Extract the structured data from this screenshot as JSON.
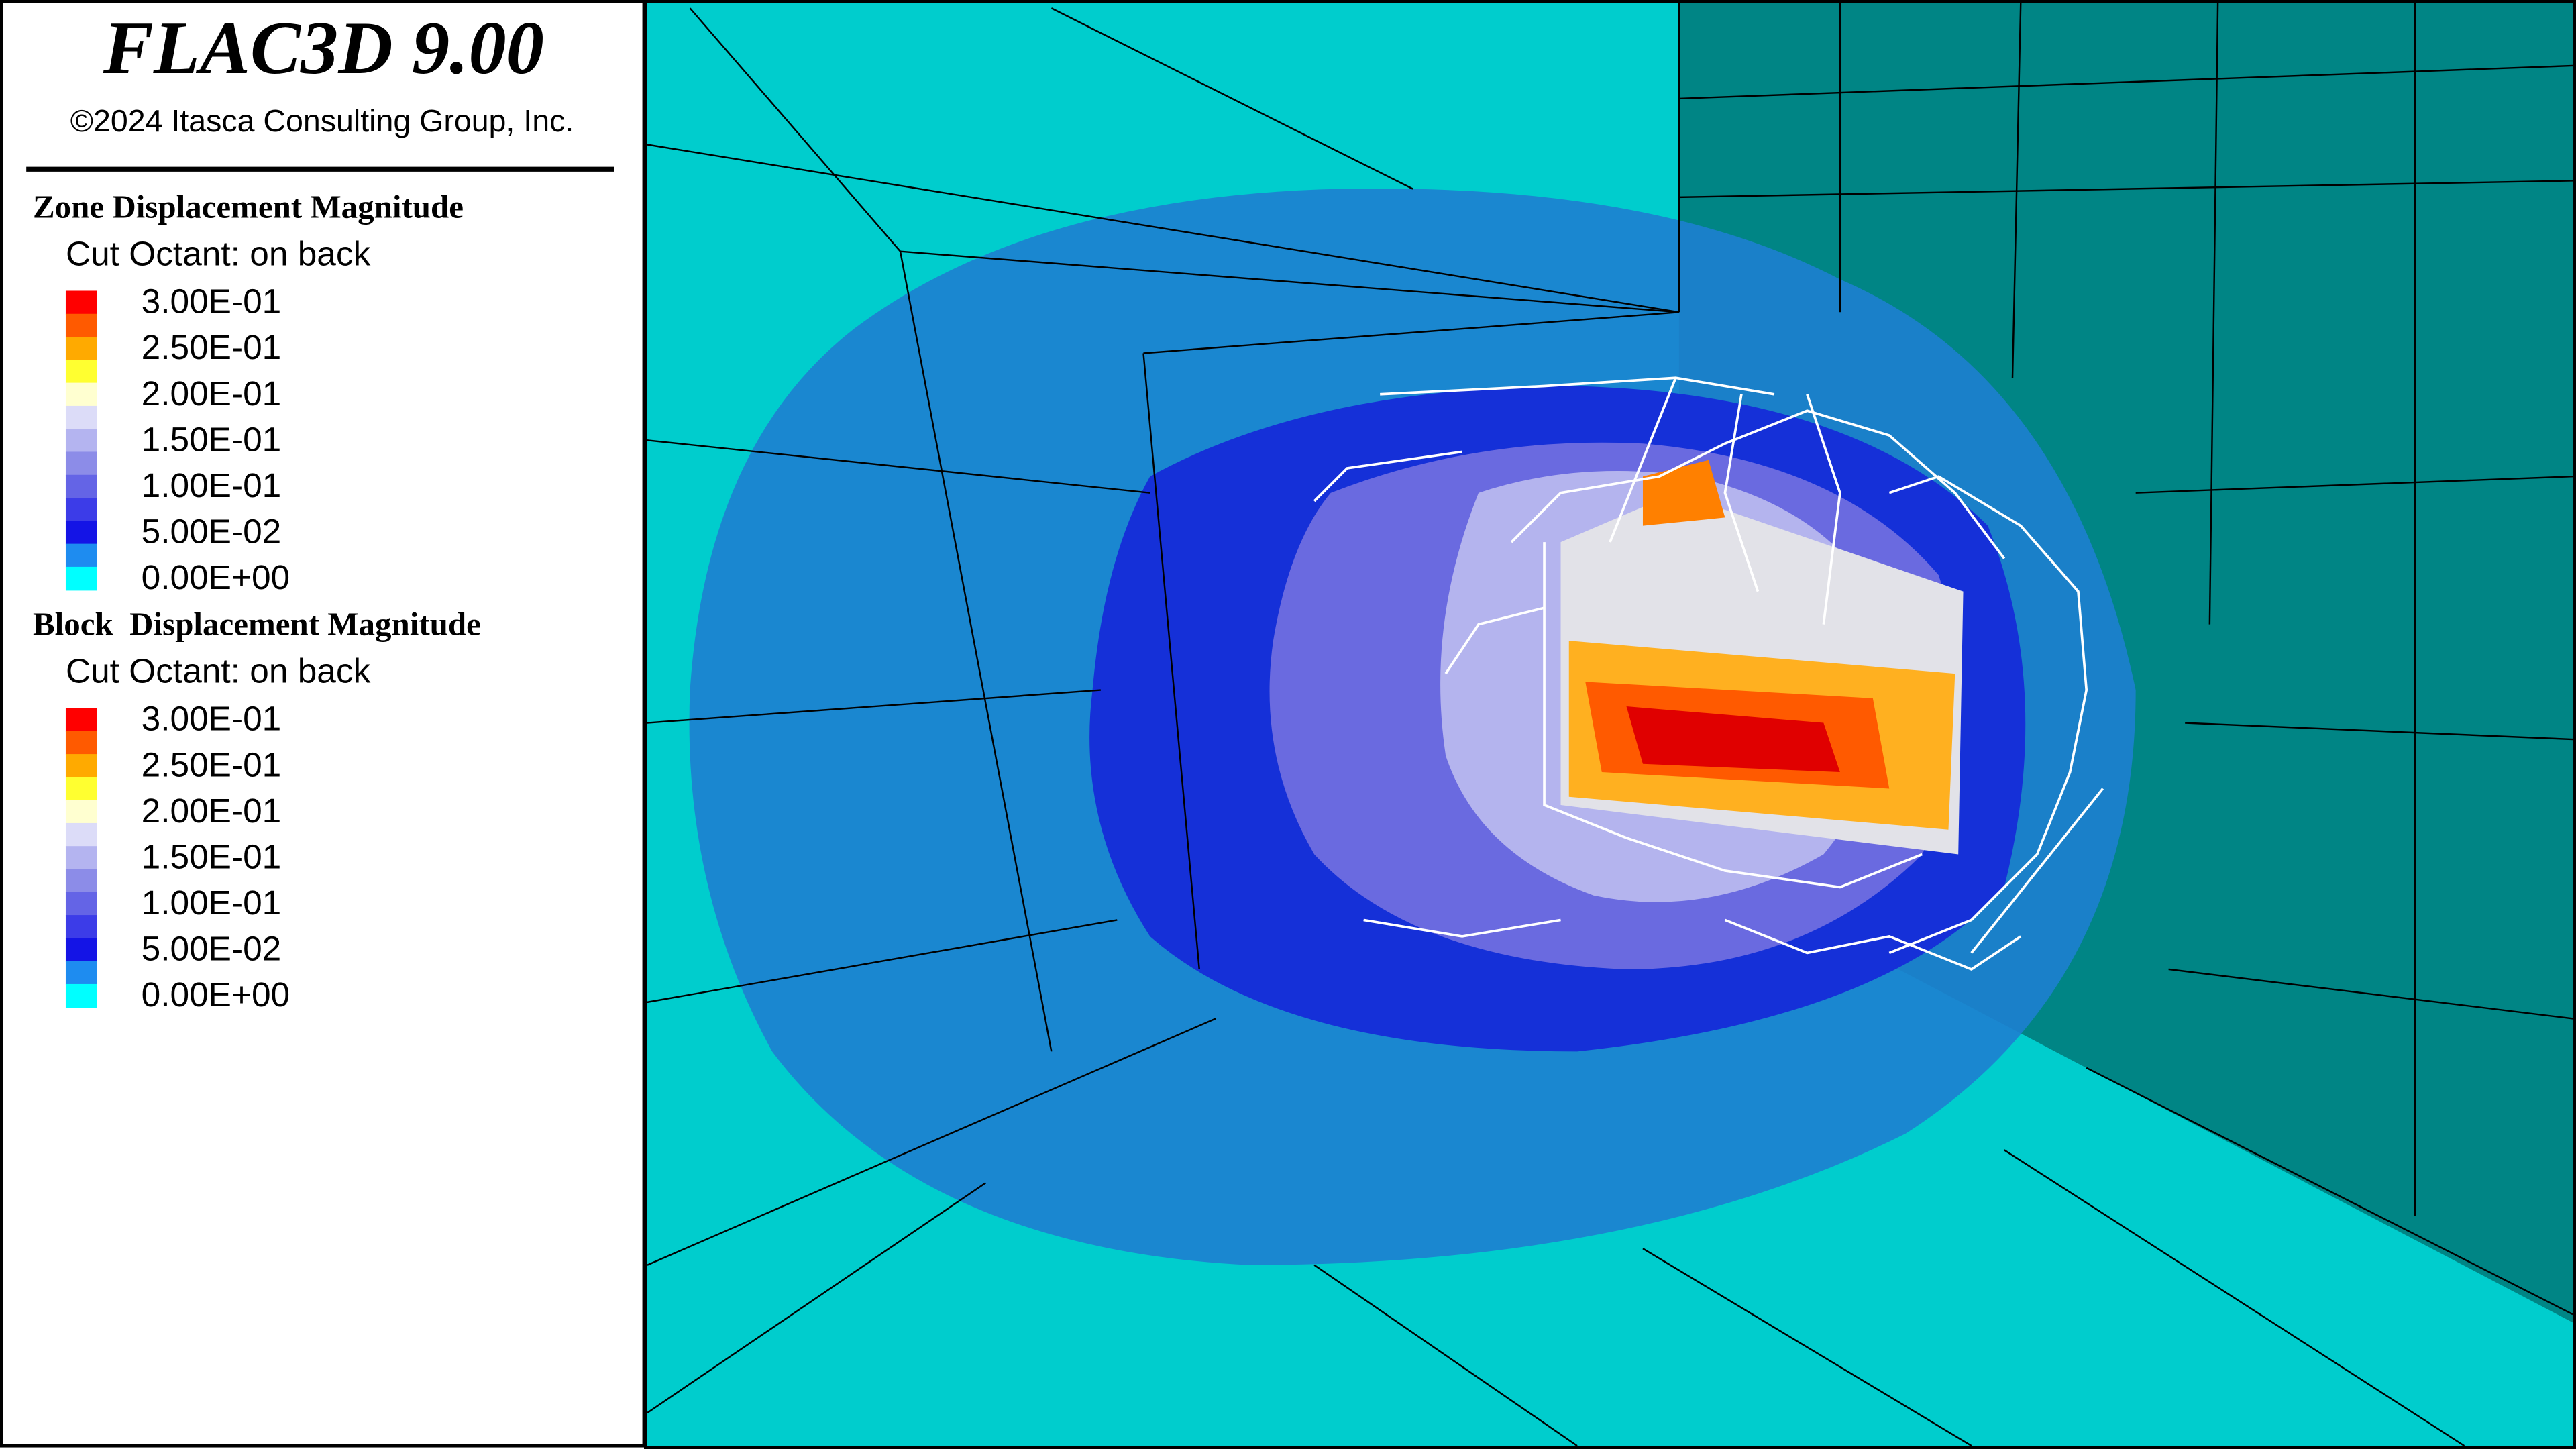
{
  "header": {
    "title": "FLAC3D 9.00",
    "copyright": "©2024 Itasca Consulting Group, Inc."
  },
  "legends": [
    {
      "title": "Zone Displacement Magnitude",
      "subtitle": "Cut Octant: on back",
      "labels": [
        "3.00E-01",
        "2.50E-01",
        "2.00E-01",
        "1.50E-01",
        "1.00E-01",
        "5.00E-02",
        "0.00E+00"
      ],
      "colors": [
        "#ff0000",
        "#ff5a00",
        "#ffaa00",
        "#ffff30",
        "#ffffd0",
        "#dcdcf8",
        "#b4b4f0",
        "#8c8ce8",
        "#6464e6",
        "#3c3ce8",
        "#1414e6",
        "#1e8cf0",
        "#00ffff"
      ]
    },
    {
      "title": "Block  Displacement Magnitude",
      "subtitle": "Cut Octant: on back",
      "labels": [
        "3.00E-01",
        "2.50E-01",
        "2.00E-01",
        "1.50E-01",
        "1.00E-01",
        "5.00E-02",
        "0.00E+00"
      ],
      "colors": [
        "#ff0000",
        "#ff5a00",
        "#ffaa00",
        "#ffff30",
        "#ffffd0",
        "#dcdcf8",
        "#b4b4f0",
        "#8c8ce8",
        "#6464e6",
        "#3c3ce8",
        "#1414e6",
        "#1e8cf0",
        "#00ffff"
      ]
    }
  ]
}
